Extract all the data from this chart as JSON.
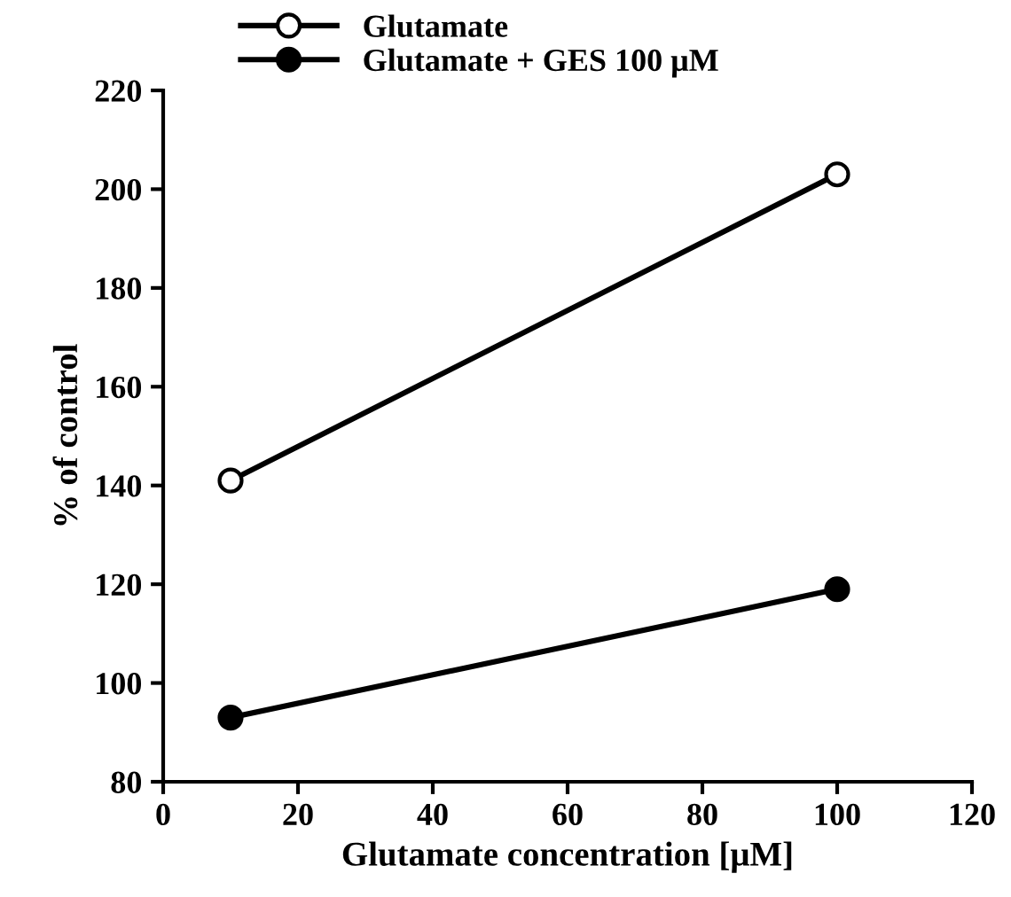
{
  "chart_data": {
    "type": "line",
    "xlabel": "Glutamate concentration [μM]",
    "ylabel": "% of control",
    "x": [
      10,
      100
    ],
    "series": [
      {
        "name": "Glutamate",
        "color": "#000000",
        "values": [
          141,
          203
        ]
      },
      {
        "name": "Glutamate + GES 100 μM",
        "color": "#000000",
        "values": [
          93,
          119
        ]
      }
    ],
    "xlim": [
      0,
      120
    ],
    "xticks": [
      0,
      20,
      40,
      60,
      80,
      100,
      120
    ],
    "ylim": [
      80,
      220
    ],
    "yticks": [
      80,
      100,
      120,
      140,
      160,
      180,
      200,
      220
    ],
    "marker": "circle",
    "line_style": "solid",
    "legend": "top",
    "grid": false
  }
}
